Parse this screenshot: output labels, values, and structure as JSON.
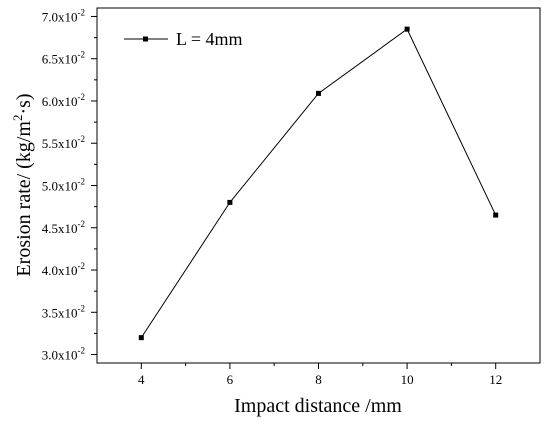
{
  "chart_data": {
    "type": "line",
    "xlabel": "Impact distance /mm",
    "ylabel_main": "Erosion rate/ (kg/m",
    "ylabel_sup": "2",
    "ylabel_tail": "·s)",
    "xlim": [
      3,
      13
    ],
    "ylim": [
      2.9,
      7.1
    ],
    "y_scale_exponent": -2,
    "xticks": [
      4,
      6,
      8,
      10,
      12
    ],
    "xtick_labels": [
      "4",
      "6",
      "8",
      "10",
      "12"
    ],
    "yticks": [
      3.0,
      3.5,
      4.0,
      4.5,
      5.0,
      5.5,
      6.0,
      6.5,
      7.0
    ],
    "ytick_mantissas": [
      "3.0x10",
      "3.5x10",
      "4.0x10",
      "4.5x10",
      "5.0x10",
      "5.5x10",
      "6.0x10",
      "6.5x10",
      "7.0x10"
    ],
    "ytick_exponent_label": "-2",
    "grid": false,
    "legend_position": "top-left",
    "series": [
      {
        "name": "L = 4mm",
        "color": "#000000",
        "marker": "square",
        "x": [
          4,
          6,
          8,
          10,
          12
        ],
        "y": [
          3.2,
          4.8,
          6.09,
          6.85,
          4.65
        ]
      }
    ]
  }
}
